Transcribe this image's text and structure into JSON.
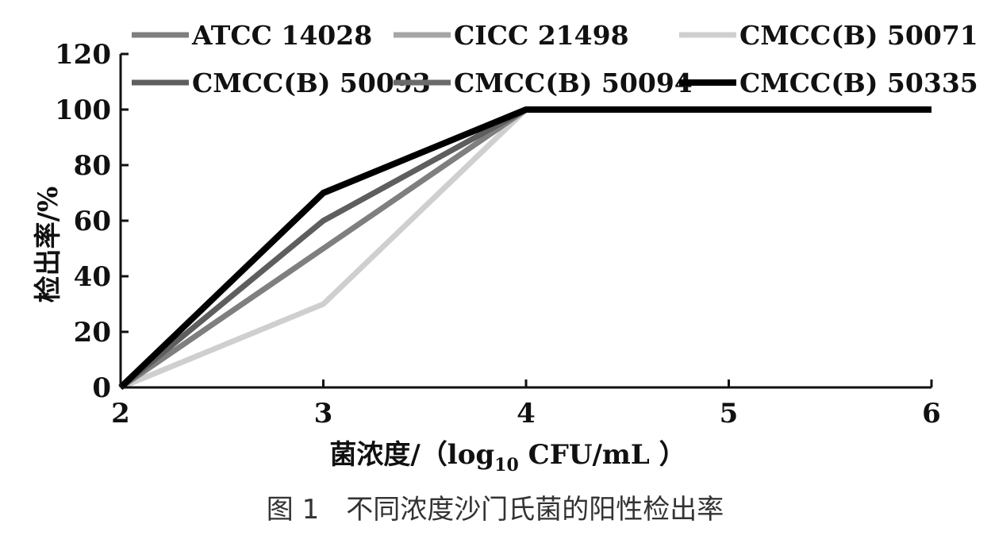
{
  "chart_data": {
    "type": "line",
    "caption": "图 1　不同浓度沙门氏菌的阳性检出率",
    "xlabel_main": "菌浓度/（",
    "xlabel_log": "log",
    "xlabel_sub": "10",
    "xlabel_unit": " CFU/mL ）",
    "ylabel": "检出率/%",
    "x": [
      2,
      3,
      4,
      5,
      6
    ],
    "xlim": [
      2,
      6
    ],
    "ylim": [
      0,
      120
    ],
    "xticks": [
      "2",
      "3",
      "4",
      "5",
      "6"
    ],
    "yticks": [
      "0",
      "20",
      "40",
      "60",
      "80",
      "100",
      "120"
    ],
    "grid": false,
    "legend_position": "top",
    "series": [
      {
        "name": "ATCC 14028",
        "color": "#7f7f7f",
        "values": [
          0,
          50,
          100,
          100,
          100
        ]
      },
      {
        "name": "CICC 21498",
        "color": "#a6a6a6",
        "values": [
          0,
          50,
          100,
          100,
          100
        ]
      },
      {
        "name": "CMCC(B) 50071",
        "color": "#cfcfcf",
        "values": [
          0,
          30,
          100,
          100,
          100
        ]
      },
      {
        "name": "CMCC(B) 50093",
        "color": "#5e5e5e",
        "values": [
          0,
          60,
          100,
          100,
          100
        ]
      },
      {
        "name": "CMCC(B) 50094",
        "color": "#6b6b6b",
        "values": [
          0,
          60,
          100,
          100,
          100
        ]
      },
      {
        "name": "CMCC(B) 50335",
        "color": "#000000",
        "values": [
          0,
          70,
          100,
          100,
          100
        ]
      }
    ]
  }
}
